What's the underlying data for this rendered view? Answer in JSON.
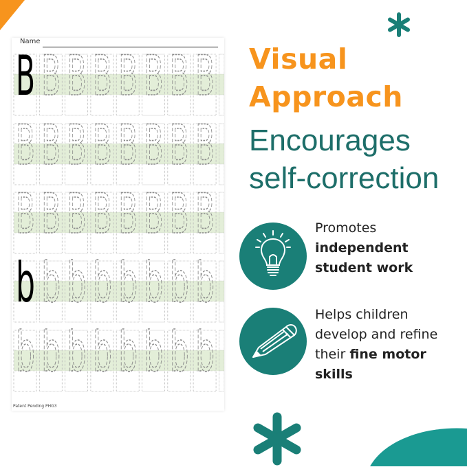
{
  "worksheet": {
    "name_label": "Name",
    "footer": "Patent Pending PHG3",
    "rows": [
      {
        "model": "B",
        "trace": "B"
      },
      {
        "model": null,
        "trace": "B"
      },
      {
        "model": null,
        "trace": "B"
      },
      {
        "model": "b",
        "trace": "b"
      },
      {
        "model": null,
        "trace": "b"
      }
    ],
    "colors": {
      "band": "#e3eed8",
      "guide": "#b5b5b5",
      "trace": "#8a8a8a"
    }
  },
  "headline": {
    "line1": "Visual",
    "line2": "Approach",
    "line3": "Encourages",
    "line4": "self-correction"
  },
  "features": [
    {
      "icon": "lightbulb-icon",
      "plain1": "Promotes",
      "bold1": "independent",
      "bold2": "student work"
    },
    {
      "icon": "pencil-icon",
      "plain1": "Helps children",
      "plain2": "develop and refine",
      "plain3": "their ",
      "bold1": "fine motor",
      "bold2": "skills"
    }
  ],
  "colors": {
    "orange": "#f7941d",
    "teal": "#1a7f77",
    "teal_text": "#1d6e69"
  }
}
